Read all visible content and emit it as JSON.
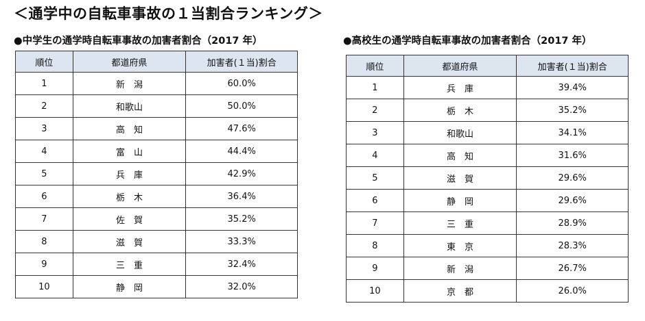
{
  "page_title": "＜通学中の自転車事故の１当割合ランキング＞",
  "columns": [
    "順位",
    "都道府県",
    "加害者(１当)割合"
  ],
  "middle_school": {
    "title": "●中学生の通学時自転車事故の加害者割合（2017 年）",
    "rows": [
      {
        "rank": "1",
        "prefecture": "新　潟",
        "ratio": "60.0%"
      },
      {
        "rank": "2",
        "prefecture": "和歌山",
        "ratio": "50.0%"
      },
      {
        "rank": "3",
        "prefecture": "高　知",
        "ratio": "47.6%"
      },
      {
        "rank": "4",
        "prefecture": "富　山",
        "ratio": "44.4%"
      },
      {
        "rank": "5",
        "prefecture": "兵　庫",
        "ratio": "42.9%"
      },
      {
        "rank": "6",
        "prefecture": "栃　木",
        "ratio": "36.4%"
      },
      {
        "rank": "7",
        "prefecture": "佐　賀",
        "ratio": "35.2%"
      },
      {
        "rank": "8",
        "prefecture": "滋　賀",
        "ratio": "33.3%"
      },
      {
        "rank": "9",
        "prefecture": "三　重",
        "ratio": "32.4%"
      },
      {
        "rank": "10",
        "prefecture": "静　岡",
        "ratio": "32.0%"
      }
    ]
  },
  "high_school": {
    "title": "●高校生の通学時自転車事故の加害者割合（2017 年）",
    "rows": [
      {
        "rank": "1",
        "prefecture": "兵　庫",
        "ratio": "39.4%"
      },
      {
        "rank": "2",
        "prefecture": "栃　木",
        "ratio": "35.2%"
      },
      {
        "rank": "3",
        "prefecture": "和歌山",
        "ratio": "34.1%"
      },
      {
        "rank": "4",
        "prefecture": "高　知",
        "ratio": "31.6%"
      },
      {
        "rank": "5",
        "prefecture": "滋　賀",
        "ratio": "29.6%"
      },
      {
        "rank": "6",
        "prefecture": "静　岡",
        "ratio": "29.6%"
      },
      {
        "rank": "7",
        "prefecture": "三　重",
        "ratio": "28.9%"
      },
      {
        "rank": "8",
        "prefecture": "東　京",
        "ratio": "28.3%"
      },
      {
        "rank": "9",
        "prefecture": "新　潟",
        "ratio": "26.7%"
      },
      {
        "rank": "10",
        "prefecture": "京　都",
        "ratio": "26.0%"
      }
    ]
  }
}
